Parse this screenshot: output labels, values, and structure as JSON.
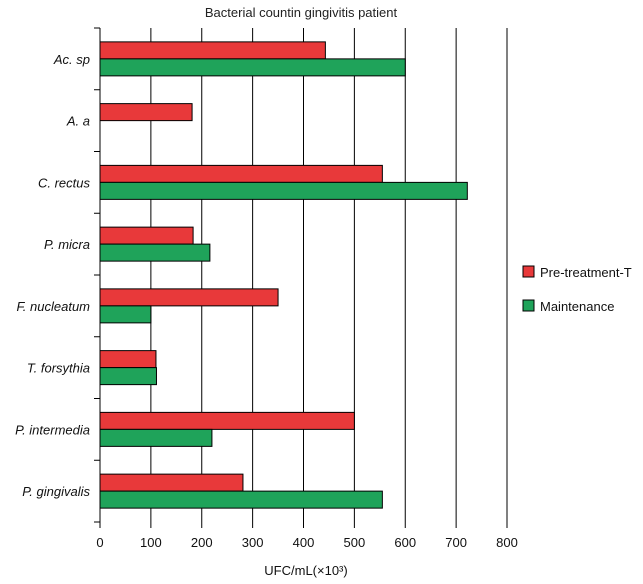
{
  "chart_data": {
    "type": "bar",
    "orientation": "horizontal",
    "title": "Bacterial countin gingivitis patient",
    "xlabel": "UFC/mL(×10³)",
    "ylabel": "",
    "xlim": [
      0,
      800
    ],
    "xticks": [
      "0",
      "100",
      "200",
      "300",
      "400",
      "500",
      "600",
      "700",
      "800"
    ],
    "grid": "vertical",
    "legend_position": "right",
    "categories": [
      "Ac. sp",
      "A. a",
      "C. rectus",
      "P. micra",
      "F. nucleatum",
      "T. forsythia",
      "P. intermedia",
      "P. gingivalis"
    ],
    "series": [
      {
        "name": "Pre-treatment-T",
        "color": "#e8393a",
        "values": [
          443,
          181,
          555,
          183,
          350,
          110,
          500,
          281
        ]
      },
      {
        "name": "Maintenance",
        "color": "#1fa35a",
        "values": [
          600,
          null,
          722,
          216,
          100,
          111,
          220,
          555
        ]
      }
    ]
  }
}
